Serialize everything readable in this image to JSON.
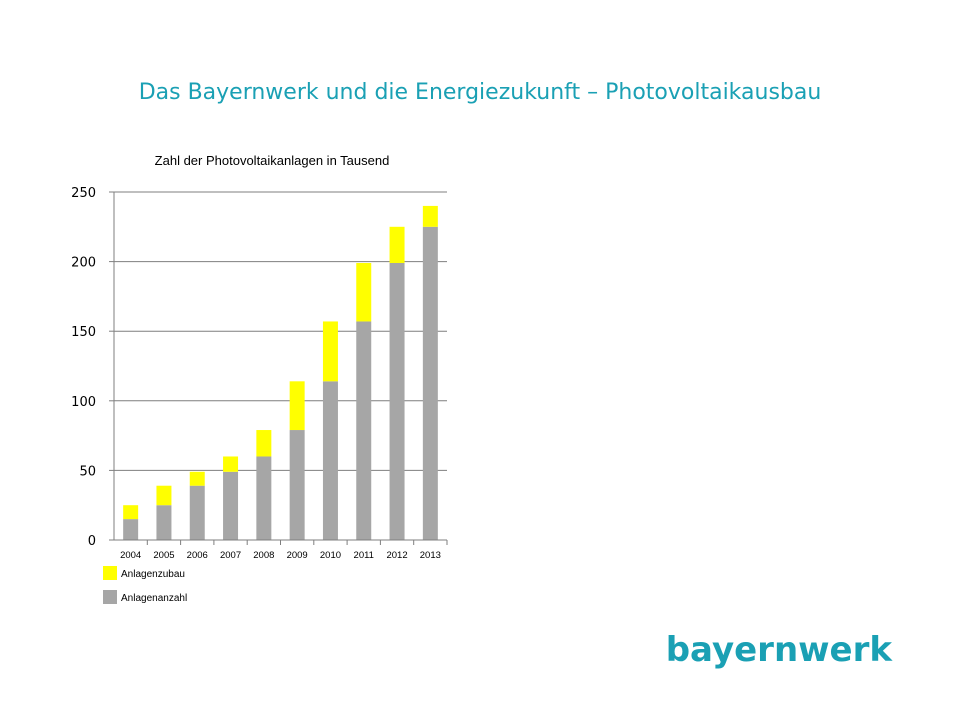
{
  "slide": {
    "title": "Das Bayernwerk und die Energiezukunft – Photovoltaikausbau"
  },
  "logo": {
    "text": "bayernwerk"
  },
  "colors": {
    "accent": "#1aa0b4",
    "zubau": "#ffff00",
    "anzahl": "#a6a6a6",
    "gridline": "#7f7f7f"
  },
  "chart_data": {
    "type": "bar",
    "stacked": true,
    "title": "Zahl der Photovoltaikanlagen  in Tausend",
    "xlabel": "",
    "ylabel": "",
    "ylim": [
      0,
      250
    ],
    "yticks": [
      0,
      50,
      100,
      150,
      200,
      250
    ],
    "grid": true,
    "legend_position": "bottom-left",
    "categories": [
      "2004",
      "2005",
      "2006",
      "2007",
      "2008",
      "2009",
      "2010",
      "2011",
      "2012",
      "2013"
    ],
    "series": [
      {
        "name": "Anlagenanzahl",
        "color": "#a6a6a6",
        "values": [
          15,
          25,
          39,
          49,
          60,
          79,
          114,
          157,
          199,
          225
        ]
      },
      {
        "name": "Anlagenzubau",
        "color": "#ffff00",
        "values": [
          10,
          14,
          10,
          11,
          19,
          35,
          43,
          42,
          26,
          15
        ]
      }
    ],
    "legend_order": [
      "Anlagenzubau",
      "Anlagenanzahl"
    ]
  }
}
